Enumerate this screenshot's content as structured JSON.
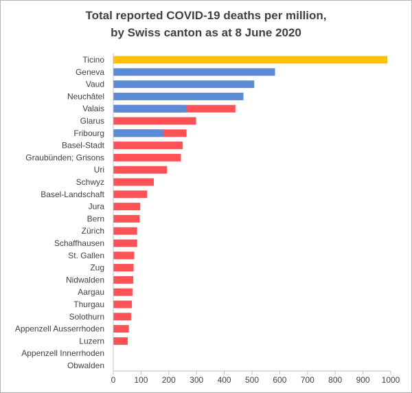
{
  "chart_data": {
    "type": "bar",
    "orientation": "horizontal",
    "title": "Total reported COVID-19 deaths per million, by Swiss canton as at 8 June 2020",
    "title_lines": [
      "Total reported COVID-19 deaths per million,",
      "by Swiss canton as at 8 June 2020"
    ],
    "xlabel": "",
    "ylabel": "",
    "xlim": [
      0,
      1000
    ],
    "xticks": [
      "0",
      "100",
      "200",
      "300",
      "400",
      "500",
      "600",
      "700",
      "800",
      "900",
      "1000"
    ],
    "grid": false,
    "legend": "none",
    "colors": {
      "highlight": "#FFC000",
      "blue": "#5B8BD6",
      "red": "#FF5257",
      "axis": "#bfbfbf",
      "text": "#404040"
    },
    "bars": [
      {
        "name": "Ticino",
        "value": 988,
        "color": "highlight"
      },
      {
        "name": "Geneva",
        "value": 583,
        "color": "blue"
      },
      {
        "name": "Vaud",
        "value": 508,
        "color": "blue"
      },
      {
        "name": "Neuchâtel",
        "value": 469,
        "color": "blue"
      },
      {
        "name": "Valais",
        "value": 440,
        "color": "red",
        "overlay": 262
      },
      {
        "name": "Glarus",
        "value": 298,
        "color": "red"
      },
      {
        "name": "Fribourg",
        "value": 264,
        "color": "red",
        "overlay": 180
      },
      {
        "name": "Basel-Stadt",
        "value": 250,
        "color": "red"
      },
      {
        "name": "Graubünden; Grisons",
        "value": 243,
        "color": "red"
      },
      {
        "name": "Uri",
        "value": 193,
        "color": "red"
      },
      {
        "name": "Schwyz",
        "value": 146,
        "color": "red"
      },
      {
        "name": "Basel-Landschaft",
        "value": 122,
        "color": "red"
      },
      {
        "name": "Jura",
        "value": 97,
        "color": "red"
      },
      {
        "name": "Bern",
        "value": 95,
        "color": "red"
      },
      {
        "name": "Zürich",
        "value": 86,
        "color": "red"
      },
      {
        "name": "Schaffhausen",
        "value": 86,
        "color": "red"
      },
      {
        "name": "St. Gallen",
        "value": 75,
        "color": "red"
      },
      {
        "name": "Zug",
        "value": 73,
        "color": "red"
      },
      {
        "name": "Nidwalden",
        "value": 72,
        "color": "red"
      },
      {
        "name": "Aargau",
        "value": 69,
        "color": "red"
      },
      {
        "name": "Thurgau",
        "value": 67,
        "color": "red"
      },
      {
        "name": "Solothurn",
        "value": 64,
        "color": "red"
      },
      {
        "name": "Appenzell Ausserrhoden",
        "value": 56,
        "color": "red"
      },
      {
        "name": "Luzern",
        "value": 52,
        "color": "red"
      },
      {
        "name": "Appenzell Innerrhoden",
        "value": 0,
        "color": "red"
      },
      {
        "name": "Obwalden",
        "value": 0,
        "color": "red"
      }
    ]
  }
}
